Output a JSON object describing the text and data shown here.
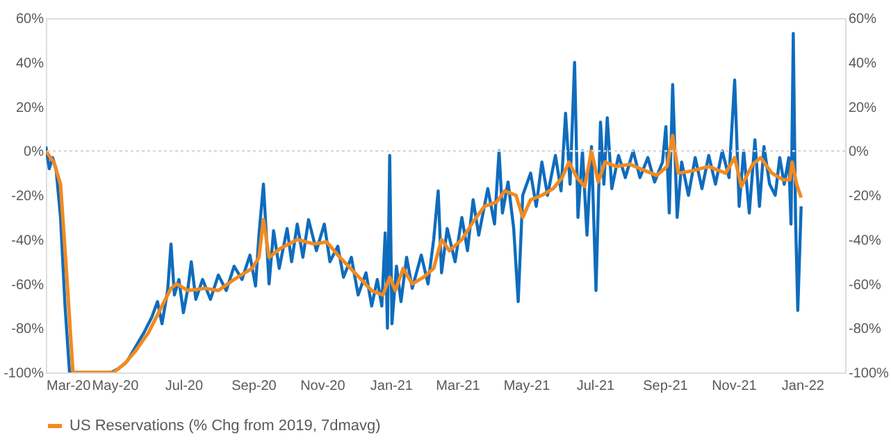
{
  "chart_data": {
    "type": "line",
    "xlim": [
      "2020-03-01",
      "2022-02-08"
    ],
    "xticks": [
      {
        "value": "2020-03-01",
        "label": "Mar-20"
      },
      {
        "value": "2020-05-01",
        "label": "May-20"
      },
      {
        "value": "2020-07-01",
        "label": "Jul-20"
      },
      {
        "value": "2020-09-01",
        "label": "Sep-20"
      },
      {
        "value": "2020-11-01",
        "label": "Nov-20"
      },
      {
        "value": "2021-01-01",
        "label": "Jan-21"
      },
      {
        "value": "2021-03-01",
        "label": "Mar-21"
      },
      {
        "value": "2021-05-01",
        "label": "May-21"
      },
      {
        "value": "2021-07-01",
        "label": "Jul-21"
      },
      {
        "value": "2021-09-01",
        "label": "Sep-21"
      },
      {
        "value": "2021-11-01",
        "label": "Nov-21"
      },
      {
        "value": "2022-01-01",
        "label": "Jan-22"
      }
    ],
    "ylim": [
      -100,
      60
    ],
    "yticks": [
      {
        "value": -100,
        "label": "-100%"
      },
      {
        "value": -80,
        "label": "-80%"
      },
      {
        "value": -60,
        "label": "-60%"
      },
      {
        "value": -40,
        "label": "-40%"
      },
      {
        "value": -20,
        "label": "-20%"
      },
      {
        "value": 0,
        "label": "0%"
      },
      {
        "value": 20,
        "label": "20%"
      },
      {
        "value": 40,
        "label": "40%"
      },
      {
        "value": 60,
        "label": "60%"
      }
    ],
    "y2lim": [
      -100,
      60
    ],
    "y2ticks": [
      {
        "value": -100,
        "label": "-100%"
      },
      {
        "value": -80,
        "label": "-80%"
      },
      {
        "value": -60,
        "label": "-60%"
      },
      {
        "value": -40,
        "label": "-40%"
      },
      {
        "value": -20,
        "label": "-20%"
      },
      {
        "value": 0,
        "label": "0%"
      },
      {
        "value": 20,
        "label": "20%"
      },
      {
        "value": 40,
        "label": "40%"
      },
      {
        "value": 60,
        "label": "60%"
      }
    ],
    "grid": false,
    "legend": "bottom",
    "marker": "none",
    "line_style": "solid",
    "ref_lines": [
      {
        "axis": "y",
        "value": 0,
        "color": "#d9d9d9",
        "line_style": "dotted"
      }
    ],
    "series": [
      {
        "color": "#0f6cbd",
        "x": [
          "2020-03-01",
          "2020-03-04",
          "2020-03-07",
          "2020-03-10",
          "2020-03-14",
          "2020-03-18",
          "2020-03-22",
          "2020-04-28",
          "2020-05-05",
          "2020-05-12",
          "2020-05-20",
          "2020-05-27",
          "2020-06-03",
          "2020-06-08",
          "2020-06-12",
          "2020-06-17",
          "2020-06-20",
          "2020-06-23",
          "2020-06-27",
          "2020-07-01",
          "2020-07-05",
          "2020-07-08",
          "2020-07-12",
          "2020-07-18",
          "2020-07-25",
          "2020-08-01",
          "2020-08-08",
          "2020-08-15",
          "2020-08-22",
          "2020-08-29",
          "2020-09-03",
          "2020-09-06",
          "2020-09-10",
          "2020-09-13",
          "2020-09-15",
          "2020-09-19",
          "2020-09-24",
          "2020-10-01",
          "2020-10-05",
          "2020-10-10",
          "2020-10-15",
          "2020-10-20",
          "2020-10-27",
          "2020-11-03",
          "2020-11-08",
          "2020-11-15",
          "2020-11-20",
          "2020-11-27",
          "2020-12-03",
          "2020-12-10",
          "2020-12-15",
          "2020-12-20",
          "2020-12-24",
          "2020-12-27",
          "2020-12-29",
          "2020-12-31",
          "2021-01-02",
          "2021-01-06",
          "2021-01-10",
          "2021-01-15",
          "2021-01-20",
          "2021-01-28",
          "2021-02-03",
          "2021-02-08",
          "2021-02-12",
          "2021-02-15",
          "2021-02-20",
          "2021-02-27",
          "2021-03-05",
          "2021-03-10",
          "2021-03-15",
          "2021-03-20",
          "2021-03-28",
          "2021-04-03",
          "2021-04-07",
          "2021-04-10",
          "2021-04-15",
          "2021-04-20",
          "2021-04-24",
          "2021-04-28",
          "2021-05-05",
          "2021-05-10",
          "2021-05-15",
          "2021-05-20",
          "2021-05-27",
          "2021-06-01",
          "2021-06-05",
          "2021-06-09",
          "2021-06-13",
          "2021-06-16",
          "2021-06-20",
          "2021-06-24",
          "2021-06-28",
          "2021-07-02",
          "2021-07-06",
          "2021-07-09",
          "2021-07-12",
          "2021-07-16",
          "2021-07-22",
          "2021-07-28",
          "2021-08-04",
          "2021-08-10",
          "2021-08-17",
          "2021-08-23",
          "2021-08-30",
          "2021-09-02",
          "2021-09-05",
          "2021-09-08",
          "2021-09-12",
          "2021-09-16",
          "2021-09-22",
          "2021-09-28",
          "2021-10-04",
          "2021-10-10",
          "2021-10-16",
          "2021-10-22",
          "2021-10-28",
          "2021-11-02",
          "2021-11-06",
          "2021-11-10",
          "2021-11-15",
          "2021-11-20",
          "2021-11-24",
          "2021-11-28",
          "2021-12-03",
          "2021-12-08",
          "2021-12-12",
          "2021-12-16",
          "2021-12-20",
          "2021-12-22",
          "2021-12-24",
          "2021-12-26",
          "2021-12-28",
          "2021-12-31"
        ],
        "values": [
          2,
          -8,
          -3,
          -8,
          -30,
          -70,
          -100,
          -100,
          -98,
          -95,
          -88,
          -82,
          -75,
          -68,
          -78,
          -63,
          -42,
          -65,
          -58,
          -73,
          -62,
          -50,
          -67,
          -58,
          -67,
          -56,
          -63,
          -52,
          -58,
          -47,
          -61,
          -38,
          -15,
          -42,
          -60,
          -36,
          -53,
          -35,
          -50,
          -33,
          -48,
          -31,
          -45,
          -33,
          -50,
          -43,
          -57,
          -48,
          -65,
          -55,
          -70,
          -58,
          -70,
          -37,
          -80,
          -2,
          -78,
          -52,
          -68,
          -48,
          -62,
          -47,
          -60,
          -40,
          -18,
          -55,
          -35,
          -50,
          -30,
          -45,
          -22,
          -38,
          -17,
          -33,
          0,
          -28,
          -14,
          -35,
          -68,
          -20,
          -10,
          -25,
          -5,
          -20,
          -2,
          -18,
          17,
          -15,
          40,
          -30,
          0,
          -38,
          2,
          -63,
          13,
          -15,
          15,
          -17,
          -2,
          -12,
          0,
          -12,
          -3,
          -14,
          -5,
          11,
          -28,
          30,
          -30,
          -5,
          -20,
          -3,
          -17,
          -2,
          -15,
          0,
          -12,
          32,
          -25,
          0,
          -28,
          5,
          -25,
          2,
          -15,
          -20,
          -3,
          -15,
          -3,
          -33,
          53,
          -30,
          -72,
          -25
        ]
      },
      {
        "name": "US Reservations (% Chg from 2019, 7dmavg)",
        "color": "#f28a1e",
        "x": [
          "2020-03-01",
          "2020-03-08",
          "2020-03-14",
          "2020-03-20",
          "2020-03-25",
          "2020-04-30",
          "2020-05-10",
          "2020-05-20",
          "2020-05-31",
          "2020-06-10",
          "2020-06-20",
          "2020-06-25",
          "2020-07-05",
          "2020-07-20",
          "2020-08-01",
          "2020-08-15",
          "2020-08-31",
          "2020-09-06",
          "2020-09-10",
          "2020-09-15",
          "2020-09-25",
          "2020-10-10",
          "2020-10-25",
          "2020-11-05",
          "2020-11-15",
          "2020-11-30",
          "2020-12-15",
          "2020-12-25",
          "2020-12-31",
          "2021-01-05",
          "2021-01-12",
          "2021-01-20",
          "2021-01-30",
          "2021-02-08",
          "2021-02-15",
          "2021-02-22",
          "2021-03-05",
          "2021-03-15",
          "2021-03-25",
          "2021-04-05",
          "2021-04-12",
          "2021-04-22",
          "2021-04-28",
          "2021-05-05",
          "2021-05-15",
          "2021-05-25",
          "2021-06-02",
          "2021-06-08",
          "2021-06-15",
          "2021-06-22",
          "2021-06-28",
          "2021-07-04",
          "2021-07-10",
          "2021-07-20",
          "2021-08-01",
          "2021-08-15",
          "2021-08-25",
          "2021-09-03",
          "2021-09-08",
          "2021-09-13",
          "2021-09-25",
          "2021-10-10",
          "2021-10-25",
          "2021-11-02",
          "2021-11-08",
          "2021-11-18",
          "2021-11-25",
          "2021-12-05",
          "2021-12-15",
          "2021-12-21",
          "2021-12-23",
          "2021-12-27",
          "2021-12-31"
        ],
        "values": [
          0,
          -5,
          -15,
          -60,
          -100,
          -100,
          -96,
          -90,
          -82,
          -72,
          -62,
          -60,
          -63,
          -62,
          -63,
          -58,
          -53,
          -48,
          -31,
          -48,
          -44,
          -40,
          -42,
          -41,
          -47,
          -55,
          -63,
          -65,
          -57,
          -63,
          -53,
          -60,
          -57,
          -53,
          -40,
          -45,
          -40,
          -32,
          -25,
          -23,
          -18,
          -20,
          -30,
          -22,
          -20,
          -17,
          -12,
          -5,
          -12,
          -16,
          0,
          -14,
          -5,
          -7,
          -6,
          -9,
          -11,
          -7,
          7,
          -10,
          -9,
          -7,
          -10,
          -3,
          -16,
          -6,
          -3,
          -10,
          -13,
          -13,
          -5,
          -15,
          -21
        ]
      }
    ]
  }
}
